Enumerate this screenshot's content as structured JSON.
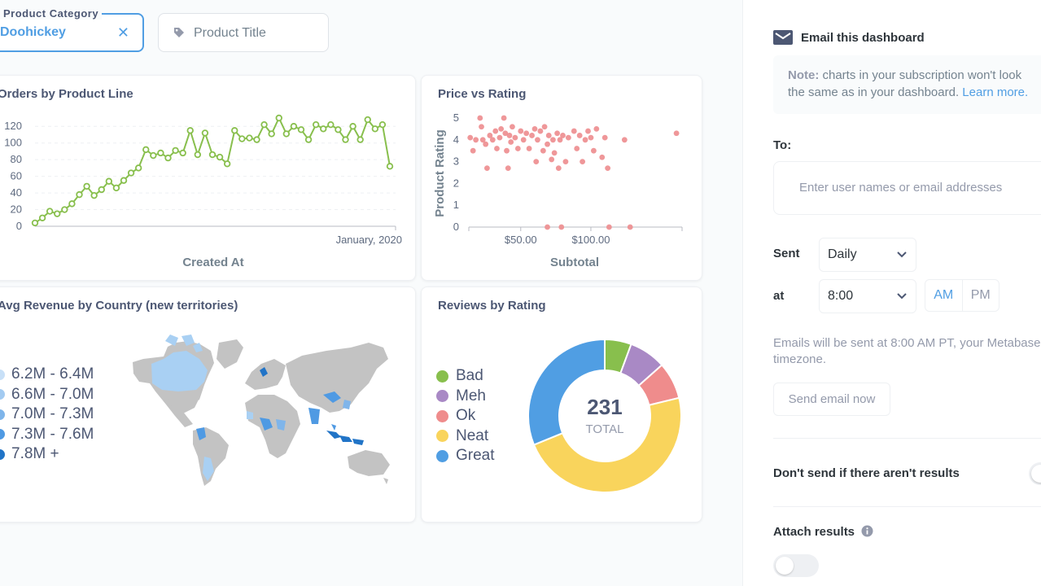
{
  "filters": {
    "category": {
      "label": "Product Category",
      "value": "Doohickey"
    },
    "title": {
      "placeholder": "Product Title",
      "icon": "tag-icon"
    }
  },
  "cards": {
    "orders": {
      "title": "Orders by Product Line"
    },
    "price": {
      "title": "Price vs Rating"
    },
    "map": {
      "title": "Avg Revenue by Country (new territories)"
    },
    "reviews": {
      "title": "Reviews by Rating"
    }
  },
  "chart_data": [
    {
      "type": "line",
      "title": "Orders by Product Line",
      "xlabel": "Created At",
      "ylabel": "",
      "x_tick_label": "January, 2020",
      "yticks": [
        "0",
        "20",
        "40",
        "60",
        "80",
        "100",
        "120"
      ],
      "ylim": [
        0,
        130
      ],
      "color": "#88bf4d",
      "series": [
        {
          "values": [
            4,
            10,
            18,
            15,
            20,
            27,
            38,
            48,
            37,
            44,
            54,
            46,
            55,
            64,
            70,
            92,
            85,
            88,
            82,
            91,
            88,
            115,
            86,
            112,
            86,
            83,
            75,
            115,
            105,
            106,
            104,
            122,
            111,
            130,
            111,
            120,
            116,
            104,
            122,
            117,
            122,
            116,
            104,
            120,
            104,
            128,
            117,
            122,
            72
          ]
        }
      ]
    },
    {
      "type": "scatter",
      "title": "Price vs Rating",
      "xlabel": "Subtotal",
      "ylabel": "Product Rating",
      "xticks": [
        "$50.00",
        "$100.00"
      ],
      "xtick_values": [
        50,
        100
      ],
      "yticks": [
        "0",
        "1",
        "2",
        "3",
        "4",
        "5"
      ],
      "xlim": [
        13,
        165
      ],
      "ylim": [
        0,
        5
      ],
      "color": "#ed8c8e",
      "points": [
        [
          14,
          4.1
        ],
        [
          16,
          3.5
        ],
        [
          18,
          4.0
        ],
        [
          21,
          5.0
        ],
        [
          22,
          4.6
        ],
        [
          23,
          4.0
        ],
        [
          25,
          3.8
        ],
        [
          26,
          2.7
        ],
        [
          28,
          4.2
        ],
        [
          30,
          4.0
        ],
        [
          32,
          4.4
        ],
        [
          33,
          3.6
        ],
        [
          35,
          4.1
        ],
        [
          36,
          4.5
        ],
        [
          38,
          5.0
        ],
        [
          39,
          4.3
        ],
        [
          40,
          3.5
        ],
        [
          41,
          2.7
        ],
        [
          42,
          4.2
        ],
        [
          43,
          3.9
        ],
        [
          44,
          4.6
        ],
        [
          46,
          4.1
        ],
        [
          48,
          3.6
        ],
        [
          50,
          4.4
        ],
        [
          52,
          4.0
        ],
        [
          54,
          4.3
        ],
        [
          56,
          3.6
        ],
        [
          58,
          4.2
        ],
        [
          60,
          4.5
        ],
        [
          61,
          3.0
        ],
        [
          62,
          4.0
        ],
        [
          64,
          4.4
        ],
        [
          66,
          3.5
        ],
        [
          67,
          4.6
        ],
        [
          69,
          3.8
        ],
        [
          70,
          4.2
        ],
        [
          72,
          3.1
        ],
        [
          73,
          4.0
        ],
        [
          74,
          3.4
        ],
        [
          76,
          4.3
        ],
        [
          77,
          2.7
        ],
        [
          78,
          4.0
        ],
        [
          80,
          4.2
        ],
        [
          82,
          3.0
        ],
        [
          84,
          4.1
        ],
        [
          88,
          4.4
        ],
        [
          90,
          3.6
        ],
        [
          92,
          4.2
        ],
        [
          94,
          3.0
        ],
        [
          96,
          4.0
        ],
        [
          98,
          4.4
        ],
        [
          100,
          4.1
        ],
        [
          102,
          3.5
        ],
        [
          104,
          4.5
        ],
        [
          108,
          3.2
        ],
        [
          110,
          4.1
        ],
        [
          112,
          2.7
        ],
        [
          124,
          4.0
        ],
        [
          161,
          4.3
        ],
        [
          69,
          0
        ],
        [
          79,
          0
        ],
        [
          113,
          0
        ],
        [
          128,
          0
        ]
      ]
    },
    {
      "type": "pie",
      "title": "Reviews by Rating",
      "total": "231",
      "total_label": "TOTAL",
      "slices": [
        {
          "name": "Bad",
          "value": 13,
          "color": "#88bf4d"
        },
        {
          "name": "Meh",
          "value": 18,
          "color": "#a989c5"
        },
        {
          "name": "Ok",
          "value": 18,
          "color": "#ef8c8c"
        },
        {
          "name": "Neat",
          "value": 110,
          "color": "#f9d45c"
        },
        {
          "name": "Great",
          "value": 72,
          "color": "#509ee3"
        }
      ]
    }
  ],
  "map": {
    "legend": [
      {
        "label": "6.2M - 6.4M",
        "color": "#c8e0f7"
      },
      {
        "label": "6.6M - 7.0M",
        "color": "#a3cbf1"
      },
      {
        "label": "7.0M - 7.3M",
        "color": "#7fb5ea"
      },
      {
        "label": "7.3M - 7.6M",
        "color": "#4f9ae3"
      },
      {
        "label": "7.8M +",
        "color": "#2174c7"
      }
    ]
  },
  "panel": {
    "header": "Email this dashboard",
    "note_bold": "Note:",
    "note_text": " charts in your subscription won't look the same as in your dashboard. ",
    "note_link": "Learn more.",
    "to_label": "To:",
    "to_placeholder": "Enter user names or email addresses",
    "sent_label": "Sent",
    "frequency": "Daily",
    "at_label": "at",
    "time": "8:00",
    "am": "AM",
    "pm": "PM",
    "help": "Emails will be sent at 8:00 AM PT, your Metabase timezone.",
    "send_now": "Send email now",
    "dont_send": "Don't send if there aren't results",
    "attach": "Attach results"
  },
  "colors": {
    "brand": "#509ee3",
    "line": "#88bf4d",
    "scatter": "#ed8c8e"
  }
}
